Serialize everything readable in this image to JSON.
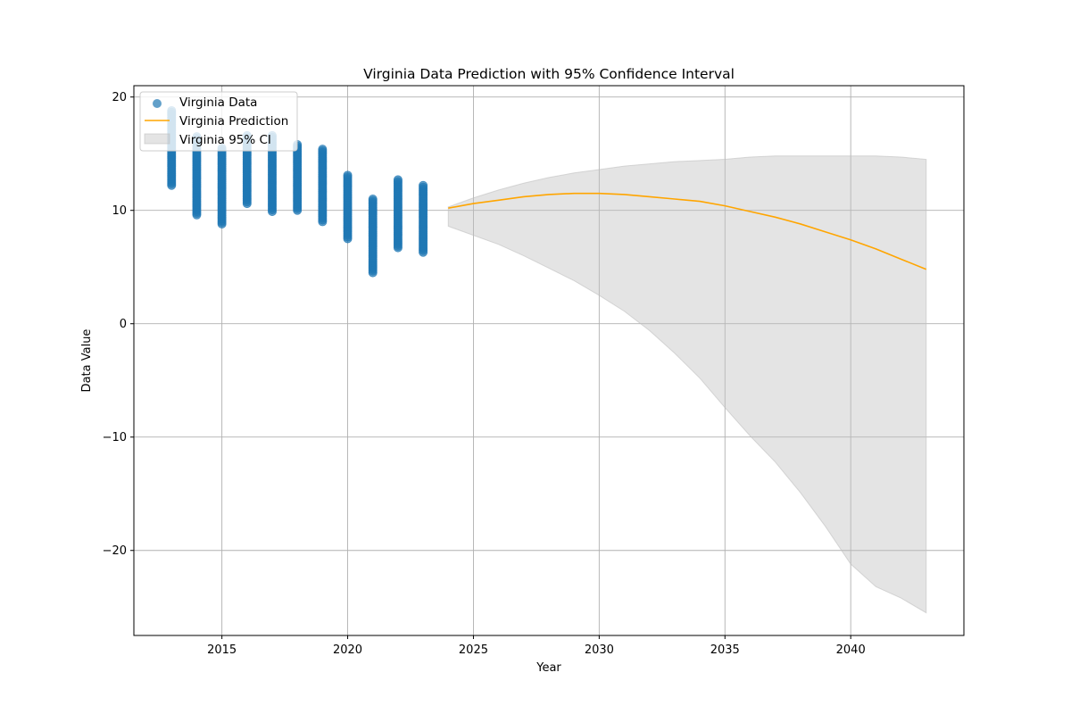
{
  "chart_data": {
    "type": "scatter",
    "title": "Virginia Data Prediction with 95% Confidence Interval",
    "xlabel": "Year",
    "ylabel": "Data Value",
    "xlim": [
      2011.5,
      2044.5
    ],
    "ylim": [
      -27.5,
      21
    ],
    "xticks": [
      2015,
      2020,
      2025,
      2030,
      2035,
      2040
    ],
    "xtick_labels": [
      "2015",
      "2020",
      "2025",
      "2030",
      "2035",
      "2040"
    ],
    "yticks": [
      20,
      10,
      0,
      -10,
      -20
    ],
    "ytick_labels": [
      "20",
      "10",
      "0",
      "−10",
      "−20"
    ],
    "grid": true,
    "legend_position": "upper-left",
    "series": [
      {
        "name": "Virginia Data",
        "kind": "scatter",
        "color": "#1f77b4",
        "groups": [
          {
            "x": 2013,
            "min": 12.2,
            "max": 18.8
          },
          {
            "x": 2014,
            "min": 9.6,
            "max": 16.5
          },
          {
            "x": 2015,
            "min": 8.8,
            "max": 15.5
          },
          {
            "x": 2016,
            "min": 10.6,
            "max": 16.6
          },
          {
            "x": 2017,
            "min": 9.9,
            "max": 16.6
          },
          {
            "x": 2018,
            "min": 10.0,
            "max": 15.8
          },
          {
            "x": 2019,
            "min": 9.0,
            "max": 15.4
          },
          {
            "x": 2020,
            "min": 7.5,
            "max": 13.1
          },
          {
            "x": 2021,
            "min": 4.5,
            "max": 11.0
          },
          {
            "x": 2022,
            "min": 6.7,
            "max": 12.7
          },
          {
            "x": 2023,
            "min": 6.3,
            "max": 12.2
          }
        ]
      },
      {
        "name": "Virginia Prediction",
        "kind": "line",
        "color": "#ffa500",
        "x": [
          2024,
          2025,
          2026,
          2027,
          2028,
          2029,
          2030,
          2031,
          2032,
          2033,
          2034,
          2035,
          2036,
          2037,
          2038,
          2039,
          2040,
          2041,
          2042,
          2043
        ],
        "y": [
          10.2,
          10.6,
          10.9,
          11.2,
          11.4,
          11.5,
          11.5,
          11.4,
          11.2,
          11.0,
          10.8,
          10.4,
          9.9,
          9.4,
          8.8,
          8.1,
          7.4,
          6.6,
          5.7,
          4.8
        ]
      },
      {
        "name": "Virginia 95% CI",
        "kind": "band",
        "color": "#bfbfbf",
        "x": [
          2024,
          2025,
          2026,
          2027,
          2028,
          2029,
          2030,
          2031,
          2032,
          2033,
          2034,
          2035,
          2036,
          2037,
          2038,
          2039,
          2040,
          2041,
          2042,
          2043
        ],
        "lower": [
          8.6,
          7.8,
          7.0,
          6.0,
          4.9,
          3.8,
          2.5,
          1.1,
          -0.6,
          -2.6,
          -4.8,
          -7.4,
          -9.9,
          -12.2,
          -14.9,
          -17.9,
          -21.2,
          -23.2,
          -24.2,
          -25.5
        ],
        "upper": [
          10.3,
          11.1,
          11.8,
          12.4,
          12.9,
          13.3,
          13.6,
          13.9,
          14.1,
          14.3,
          14.4,
          14.5,
          14.7,
          14.8,
          14.8,
          14.8,
          14.8,
          14.8,
          14.7,
          14.5
        ]
      }
    ]
  }
}
